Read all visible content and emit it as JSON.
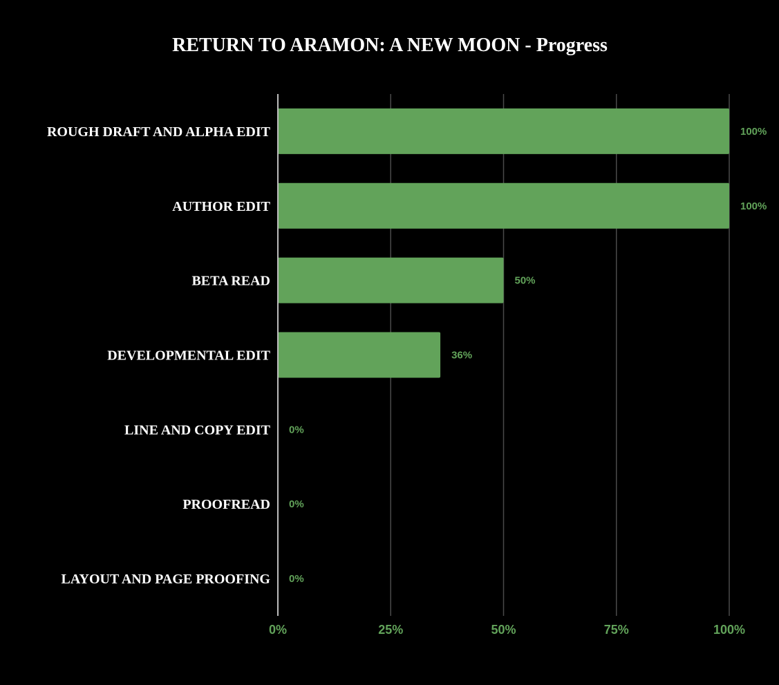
{
  "chart_data": {
    "type": "bar",
    "orientation": "horizontal",
    "title": "RETURN TO ARAMON: A NEW MOON - Progress",
    "xlabel": "",
    "ylabel": "",
    "categories": [
      "ROUGH DRAFT AND ALPHA EDIT",
      "AUTHOR EDIT",
      "BETA READ",
      "DEVELOPMENTAL EDIT",
      "LINE AND COPY EDIT",
      "PROOFREAD",
      "LAYOUT AND PAGE PROOFING"
    ],
    "values": [
      100,
      100,
      50,
      36,
      0,
      0,
      0
    ],
    "value_labels": [
      "100%",
      "100%",
      "50%",
      "36%",
      "0%",
      "0%",
      "0%"
    ],
    "xlim": [
      0,
      100
    ],
    "xticks": [
      0,
      25,
      50,
      75,
      100
    ],
    "xtick_labels": [
      "0%",
      "25%",
      "50%",
      "75%",
      "100%"
    ],
    "grid": true,
    "legend": "none",
    "colors": {
      "background": "#000000",
      "bar": "#62a35a",
      "label_green": "#62a35a",
      "text": "#ffffff",
      "grid": "#4a4a4a",
      "axis": "#bdbdbd"
    }
  }
}
